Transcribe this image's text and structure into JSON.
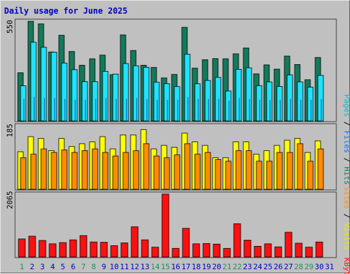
{
  "title": "Daily usage for June 2025",
  "colors": {
    "hits": "#137a5c",
    "files": "#1ee3ff",
    "pages": "#00c0c8",
    "sites": "#ff8c00",
    "visits": "#ffff00",
    "kbytes": "#ff1010",
    "weekend_label": "#1f8f5f",
    "weekday_label": "#0000c0",
    "panel_bg": "#c0c0c0"
  },
  "panels": {
    "top": {
      "max_label": "550",
      "legend": [
        "Pages",
        "Files",
        "Hits"
      ]
    },
    "middle": {
      "max_label": "185",
      "legend": [
        "Sites",
        "Visits"
      ]
    },
    "bottom": {
      "max_label": "2065",
      "legend": [
        "KBytes"
      ]
    }
  },
  "chart_data": [
    {
      "type": "bar",
      "title": "Daily usage for June 2025",
      "x": [
        1,
        2,
        3,
        4,
        5,
        6,
        7,
        8,
        9,
        10,
        11,
        12,
        13,
        14,
        15,
        16,
        17,
        18,
        19,
        20,
        21,
        22,
        23,
        24,
        25,
        26,
        27,
        28,
        29,
        30,
        31
      ],
      "weekend_days": [
        1,
        7,
        8,
        14,
        15,
        21,
        22,
        28,
        29
      ],
      "ylim": [
        0,
        550
      ],
      "series": [
        {
          "name": "Hits",
          "values": [
            262,
            542,
            528,
            375,
            466,
            378,
            303,
            338,
            358,
            252,
            468,
            383,
            303,
            291,
            234,
            253,
            509,
            287,
            333,
            339,
            338,
            365,
            397,
            256,
            305,
            282,
            353,
            307,
            224,
            345,
            null
          ]
        },
        {
          "name": "Files",
          "values": [
            191,
            428,
            401,
            374,
            315,
            279,
            214,
            214,
            270,
            255,
            312,
            300,
            292,
            211,
            203,
            187,
            363,
            202,
            220,
            237,
            163,
            281,
            289,
            192,
            212,
            188,
            250,
            212,
            184,
            248,
            null
          ]
        },
        {
          "name": "Pages",
          "values": [
            120,
            130,
            125,
            125,
            120,
            115,
            115,
            120,
            125,
            120,
            120,
            125,
            120,
            115,
            115,
            115,
            130,
            120,
            120,
            120,
            110,
            125,
            120,
            115,
            115,
            115,
            120,
            115,
            115,
            120,
            null
          ]
        }
      ]
    },
    {
      "type": "bar",
      "ylim": [
        0,
        185
      ],
      "series": [
        {
          "name": "Visits",
          "values": [
            107,
            150,
            145,
            110,
            145,
            122,
            130,
            135,
            150,
            115,
            155,
            155,
            170,
            115,
            125,
            120,
            160,
            135,
            125,
            90,
            90,
            135,
            135,
            100,
            110,
            125,
            140,
            145,
            105,
            138,
            null
          ]
        },
        {
          "name": "Sites",
          "values": [
            90,
            100,
            115,
            105,
            112,
            105,
            110,
            115,
            105,
            95,
            105,
            110,
            130,
            95,
            90,
            98,
            130,
            100,
            105,
            85,
            80,
            110,
            110,
            80,
            80,
            105,
            105,
            130,
            80,
            115,
            null
          ]
        }
      ]
    },
    {
      "type": "bar",
      "ylim": [
        0,
        2065
      ],
      "series": [
        {
          "name": "KBytes",
          "values": [
            590,
            680,
            540,
            430,
            470,
            560,
            700,
            490,
            480,
            370,
            460,
            990,
            560,
            320,
            2065,
            280,
            940,
            430,
            440,
            420,
            280,
            1090,
            550,
            350,
            430,
            330,
            810,
            450,
            320,
            490,
            null
          ]
        }
      ]
    }
  ]
}
